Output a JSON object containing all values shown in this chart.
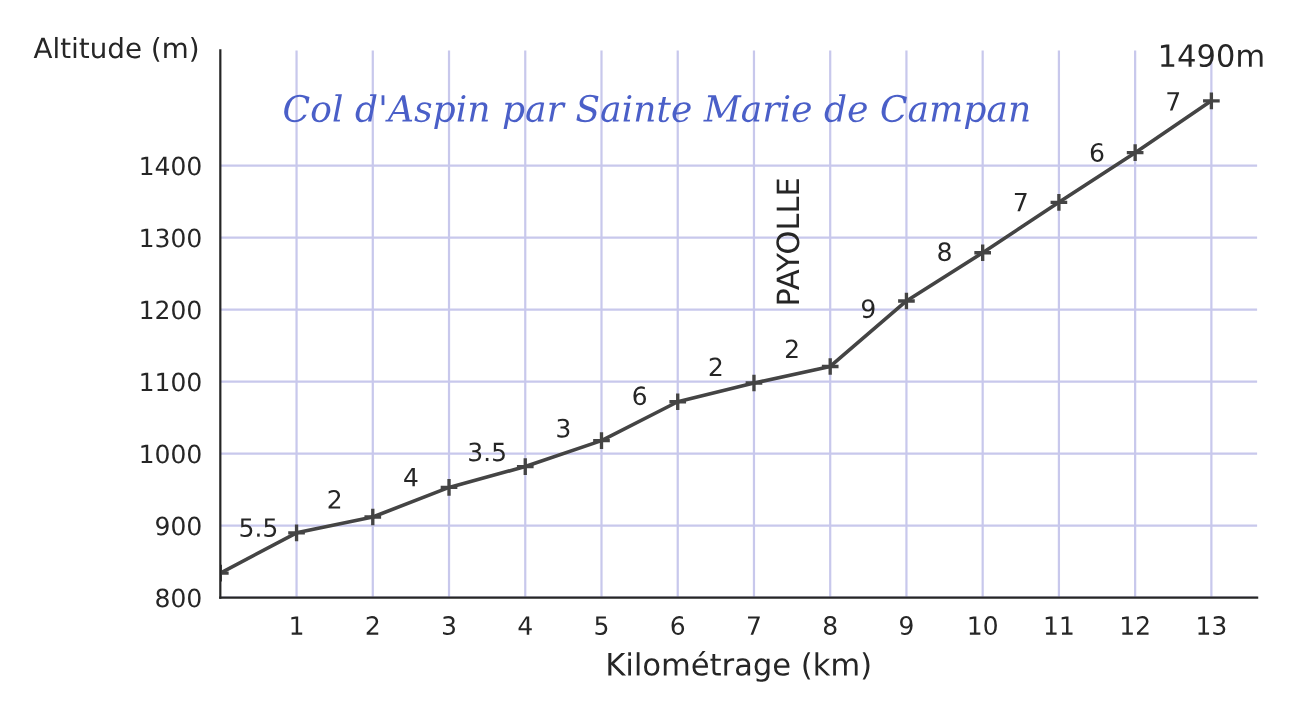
{
  "chart_data": {
    "type": "line",
    "title": "Col d'Aspin par Sainte Marie de Campan",
    "xlabel": "Kilométrage (km)",
    "ylabel": "Altitude (m)",
    "x": [
      0,
      1,
      2,
      3,
      4,
      5,
      6,
      7,
      8,
      9,
      10,
      11,
      12,
      13
    ],
    "series": [
      {
        "color": "#444444",
        "values": [
          834,
          890,
          912,
          953,
          982,
          1018,
          1072,
          1098,
          1121,
          1212,
          1279,
          1349,
          1418,
          1490
        ]
      }
    ],
    "xlim": [
      0,
      13.6
    ],
    "xticks": [
      1,
      2,
      3,
      4,
      5,
      6,
      7,
      8,
      9,
      10,
      11,
      12,
      13
    ],
    "ylim": [
      800,
      1560
    ],
    "yticks": [
      800,
      900,
      1000,
      1100,
      1200,
      1300,
      1400
    ],
    "grid": true,
    "marker": "cross",
    "line_style": "solid",
    "legend": false,
    "annotations": [
      {
        "text": "5.5",
        "x": 0.5,
        "y": 862
      },
      {
        "text": "2",
        "x": 1.5,
        "y": 901
      },
      {
        "text": "4",
        "x": 2.5,
        "y": 932
      },
      {
        "text": "3.5",
        "x": 3.5,
        "y": 967
      },
      {
        "text": "3",
        "x": 4.5,
        "y": 1000
      },
      {
        "text": "6",
        "x": 5.5,
        "y": 1045
      },
      {
        "text": "2",
        "x": 6.5,
        "y": 1085
      },
      {
        "text": "2",
        "x": 7.5,
        "y": 1110
      },
      {
        "text": "9",
        "x": 8.5,
        "y": 1166
      },
      {
        "text": "8",
        "x": 9.5,
        "y": 1245
      },
      {
        "text": "7",
        "x": 10.5,
        "y": 1314
      },
      {
        "text": "6",
        "x": 11.5,
        "y": 1383
      },
      {
        "text": "7",
        "x": 12.5,
        "y": 1454
      },
      "PAYOLLE",
      {
        "text": "1490m",
        "x": 13,
        "y": 1490
      }
    ]
  }
}
